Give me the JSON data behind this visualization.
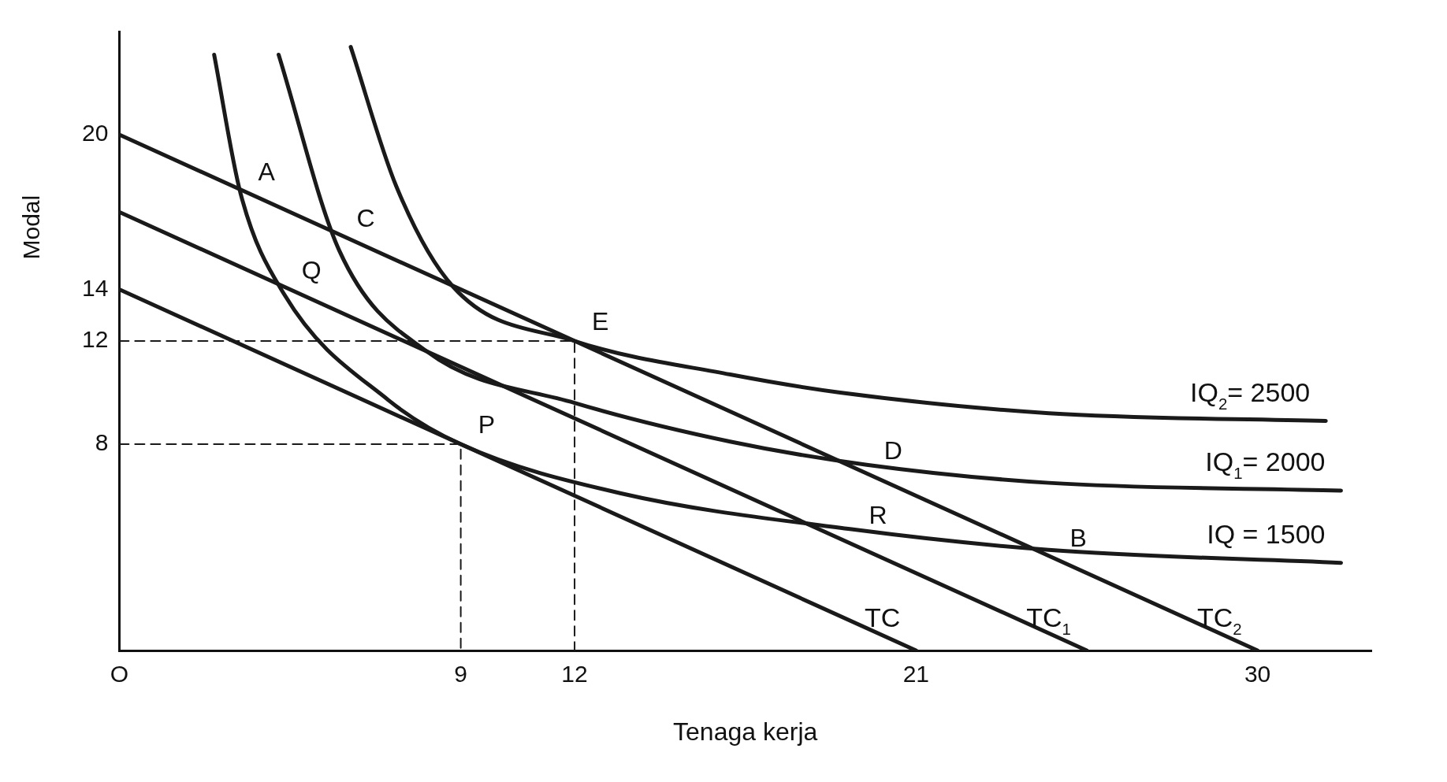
{
  "chart_data": {
    "type": "line",
    "xlabel": "Tenaga kerja",
    "ylabel": "Modal",
    "xlim": [
      0,
      33
    ],
    "ylim": [
      0,
      24
    ],
    "xticks": [
      {
        "value": 0,
        "label": "O"
      },
      9,
      12,
      21,
      30
    ],
    "yticks": [
      8,
      12,
      14,
      20
    ],
    "grid": false,
    "legend": false,
    "marker": "none",
    "series": [
      {
        "name": "IQ = 1500",
        "color": "#1a1a1a",
        "x": [
          2.5,
          3.2,
          4.35,
          7.1,
          9,
          13.2,
          19.3,
          24.5,
          32.2
        ],
        "values": [
          23.1,
          17.7,
          13.8,
          9.7,
          8,
          6.1,
          4.7,
          3.9,
          3.4
        ]
      },
      {
        "name": "IQ$_{1}$= 2000",
        "color": "#1a1a1a",
        "x": [
          4.2,
          5.8,
          8.1,
          12,
          16.1,
          19.7,
          24.5,
          32.2
        ],
        "values": [
          23.1,
          15.5,
          11.6,
          9.6,
          8.1,
          7.2,
          6.5,
          6.2
        ]
      },
      {
        "name": "IQ$_{2}$= 2500",
        "color": "#1a1a1a",
        "x": [
          6.1,
          7.3,
          8.8,
          12,
          16.1,
          19,
          24.5,
          31.8
        ],
        "values": [
          23.4,
          18,
          14.1,
          12,
          10.7,
          10,
          9.2,
          8.9
        ]
      },
      {
        "name": "TC",
        "color": "#1a1a1a",
        "x": [
          0,
          21
        ],
        "values": [
          14,
          0
        ]
      },
      {
        "name": "TC$_{1}$",
        "color": "#1a1a1a",
        "x": [
          0,
          25.5
        ],
        "values": [
          17,
          0
        ]
      },
      {
        "name": "TC$_{2}$",
        "color": "#1a1a1a",
        "x": [
          0,
          30
        ],
        "values": [
          20,
          0
        ]
      },
      {
        "type": "line",
        "line_style": "dashed",
        "color": "#1a1a1a",
        "x": [
          0,
          9,
          9
        ],
        "values": [
          8,
          8,
          0
        ]
      },
      {
        "type": "line",
        "line_style": "dashed",
        "color": "#1a1a1a",
        "x": [
          0,
          12,
          12
        ],
        "values": [
          12,
          12,
          0
        ]
      }
    ],
    "annotations": [
      {
        "text": "A",
        "x": 3.2,
        "y": 17.8
      },
      {
        "text": "C",
        "x": 5.8,
        "y": 16
      },
      {
        "text": "Q",
        "x": 4.35,
        "y": 14
      },
      {
        "text": "E",
        "x": 12,
        "y": 12
      },
      {
        "text": "P",
        "x": 9,
        "y": 8
      },
      {
        "text": "D",
        "x": 19.7,
        "y": 7
      },
      {
        "text": "R",
        "x": 19.3,
        "y": 4.5
      },
      {
        "text": "B",
        "x": 24.6,
        "y": 3.6
      }
    ]
  }
}
